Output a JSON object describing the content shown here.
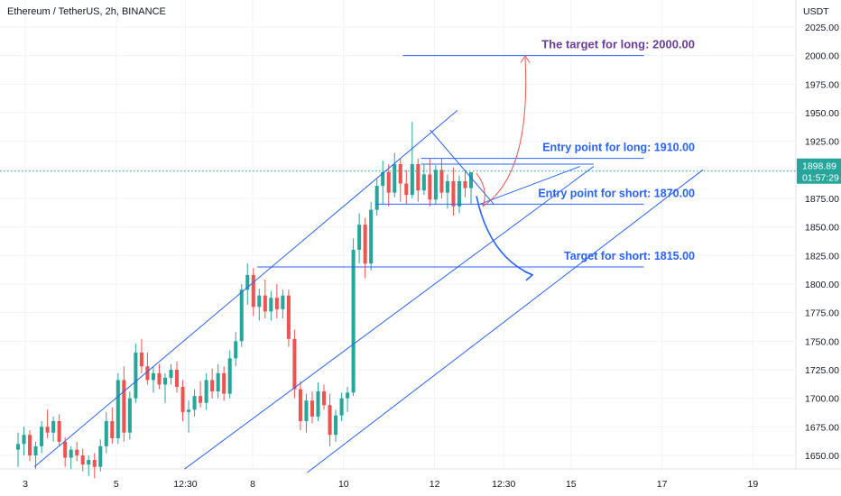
{
  "chart_data": {
    "type": "candlestick",
    "title": "Ethereum / TetherUS, 2h, BINANCE",
    "currency": "USDT",
    "ylim": [
      1635,
      2035
    ],
    "y_ticks": [
      1650,
      1675,
      1700,
      1725,
      1750,
      1775,
      1800,
      1825,
      1850,
      1875,
      1900,
      1925,
      1950,
      1975,
      2000,
      2025
    ],
    "y_tick_labels": [
      "1650.00",
      "1675.00",
      "1700.00",
      "1725.00",
      "1750.00",
      "1775.00",
      "1800.00",
      "1825.00",
      "1850.00",
      "1875.00",
      "1900.00",
      "1925.00",
      "1950.00",
      "1975.00",
      "2000.00",
      "2025.00"
    ],
    "x_ticks": [
      {
        "label": "3",
        "day": 3
      },
      {
        "label": "5",
        "day": 5
      },
      {
        "label": "12:30",
        "day": 6.52
      },
      {
        "label": "8",
        "day": 8
      },
      {
        "label": "10",
        "day": 10
      },
      {
        "label": "12",
        "day": 12
      },
      {
        "label": "12:30",
        "day": 13.52
      },
      {
        "label": "15",
        "day": 15
      },
      {
        "label": "17",
        "day": 17
      },
      {
        "label": "19",
        "day": 19
      }
    ],
    "current_price": {
      "label": "1898.89",
      "countdown": "01:57:29",
      "value": 1898.89
    },
    "colors": {
      "up": "#26a69a",
      "down": "#ef5350",
      "lines": "#2962ff",
      "purple": "#6a3d9a",
      "red_arrow": "#ef5350",
      "dotted": "#26a69a"
    },
    "candles": [
      [
        1655,
        1670,
        1640,
        1660
      ],
      [
        1660,
        1675,
        1650,
        1668
      ],
      [
        1668,
        1672,
        1645,
        1650
      ],
      [
        1650,
        1662,
        1638,
        1658
      ],
      [
        1658,
        1680,
        1652,
        1675
      ],
      [
        1675,
        1690,
        1665,
        1670
      ],
      [
        1670,
        1684,
        1662,
        1680
      ],
      [
        1680,
        1686,
        1658,
        1662
      ],
      [
        1662,
        1666,
        1640,
        1648
      ],
      [
        1648,
        1658,
        1638,
        1655
      ],
      [
        1655,
        1662,
        1645,
        1650
      ],
      [
        1650,
        1656,
        1636,
        1642
      ],
      [
        1642,
        1650,
        1632,
        1646
      ],
      [
        1646,
        1652,
        1630,
        1640
      ],
      [
        1640,
        1664,
        1636,
        1658
      ],
      [
        1658,
        1688,
        1652,
        1680
      ],
      [
        1680,
        1692,
        1660,
        1665
      ],
      [
        1665,
        1722,
        1660,
        1716
      ],
      [
        1716,
        1728,
        1662,
        1670
      ],
      [
        1670,
        1706,
        1664,
        1700
      ],
      [
        1700,
        1748,
        1696,
        1740
      ],
      [
        1740,
        1752,
        1722,
        1728
      ],
      [
        1728,
        1740,
        1712,
        1716
      ],
      [
        1716,
        1728,
        1705,
        1722
      ],
      [
        1722,
        1730,
        1708,
        1712
      ],
      [
        1712,
        1722,
        1696,
        1718
      ],
      [
        1718,
        1730,
        1712,
        1725
      ],
      [
        1725,
        1732,
        1705,
        1710
      ],
      [
        1710,
        1716,
        1680,
        1688
      ],
      [
        1688,
        1698,
        1670,
        1690
      ],
      [
        1690,
        1708,
        1684,
        1702
      ],
      [
        1702,
        1715,
        1692,
        1696
      ],
      [
        1696,
        1722,
        1690,
        1716
      ],
      [
        1716,
        1726,
        1700,
        1706
      ],
      [
        1706,
        1730,
        1700,
        1722
      ],
      [
        1722,
        1728,
        1698,
        1704
      ],
      [
        1704,
        1742,
        1700,
        1735
      ],
      [
        1735,
        1758,
        1728,
        1750
      ],
      [
        1750,
        1800,
        1745,
        1795
      ],
      [
        1795,
        1818,
        1782,
        1808
      ],
      [
        1808,
        1814,
        1772,
        1780
      ],
      [
        1780,
        1796,
        1768,
        1790
      ],
      [
        1790,
        1804,
        1770,
        1776
      ],
      [
        1776,
        1794,
        1768,
        1788
      ],
      [
        1788,
        1800,
        1770,
        1778
      ],
      [
        1778,
        1795,
        1770,
        1790
      ],
      [
        1790,
        1795,
        1745,
        1752
      ],
      [
        1752,
        1760,
        1700,
        1708
      ],
      [
        1708,
        1715,
        1672,
        1680
      ],
      [
        1680,
        1704,
        1670,
        1698
      ],
      [
        1698,
        1706,
        1678,
        1684
      ],
      [
        1684,
        1714,
        1680,
        1706
      ],
      [
        1706,
        1712,
        1690,
        1694
      ],
      [
        1694,
        1704,
        1658,
        1668
      ],
      [
        1668,
        1690,
        1662,
        1685
      ],
      [
        1685,
        1705,
        1680,
        1700
      ],
      [
        1700,
        1710,
        1688,
        1705
      ],
      [
        1705,
        1840,
        1702,
        1830
      ],
      [
        1830,
        1862,
        1818,
        1852
      ],
      [
        1852,
        1858,
        1805,
        1818
      ],
      [
        1818,
        1872,
        1812,
        1865
      ],
      [
        1865,
        1892,
        1860,
        1886
      ],
      [
        1886,
        1908,
        1870,
        1898
      ],
      [
        1898,
        1905,
        1868,
        1880
      ],
      [
        1880,
        1915,
        1876,
        1905
      ],
      [
        1905,
        1910,
        1872,
        1888
      ],
      [
        1888,
        1900,
        1870,
        1878
      ],
      [
        1878,
        1942,
        1875,
        1905
      ],
      [
        1905,
        1910,
        1872,
        1882
      ],
      [
        1882,
        1905,
        1878,
        1896
      ],
      [
        1896,
        1910,
        1868,
        1874
      ],
      [
        1874,
        1904,
        1870,
        1900
      ],
      [
        1900,
        1910,
        1875,
        1880
      ],
      [
        1880,
        1896,
        1866,
        1890
      ],
      [
        1890,
        1902,
        1860,
        1868
      ],
      [
        1868,
        1895,
        1862,
        1890
      ],
      [
        1890,
        1900,
        1876,
        1884
      ],
      [
        1884,
        1896,
        1870,
        1898
      ]
    ],
    "annotations": [
      {
        "text": "The target for long: 2000.00",
        "price": 2000,
        "color": "purple"
      },
      {
        "text": "Entry point for long: 1910.00",
        "price": 1910,
        "color": "blue"
      },
      {
        "text": "Entry point for short: 1870.00",
        "price": 1870,
        "color": "blue"
      },
      {
        "text": "Target for short: 1815.00",
        "price": 1815,
        "color": "blue"
      }
    ],
    "levels": [
      {
        "price": 2000,
        "from_day": 11.3,
        "to_day": 16.6
      },
      {
        "price": 1910,
        "from_day": 11.7,
        "to_day": 16.6
      },
      {
        "price": 1905,
        "from_day": 11.7,
        "to_day": 15.5
      },
      {
        "price": 1870,
        "from_day": 10.7,
        "to_day": 16.6
      },
      {
        "price": 1815,
        "from_day": 8.1,
        "to_day": 16.6
      }
    ],
    "trendlines": [
      {
        "from": [
          3.2,
          1640
        ],
        "to": [
          12.5,
          1952
        ]
      },
      {
        "from": [
          6.5,
          1638
        ],
        "to": [
          15.5,
          1903
        ]
      },
      {
        "from": [
          9.2,
          1635
        ],
        "to": [
          17.9,
          1900
        ]
      },
      {
        "from": [
          11.9,
          1935
        ],
        "to": [
          13.3,
          1870
        ]
      },
      {
        "from": [
          13.0,
          1870
        ],
        "to": [
          15.2,
          1903
        ]
      }
    ]
  }
}
